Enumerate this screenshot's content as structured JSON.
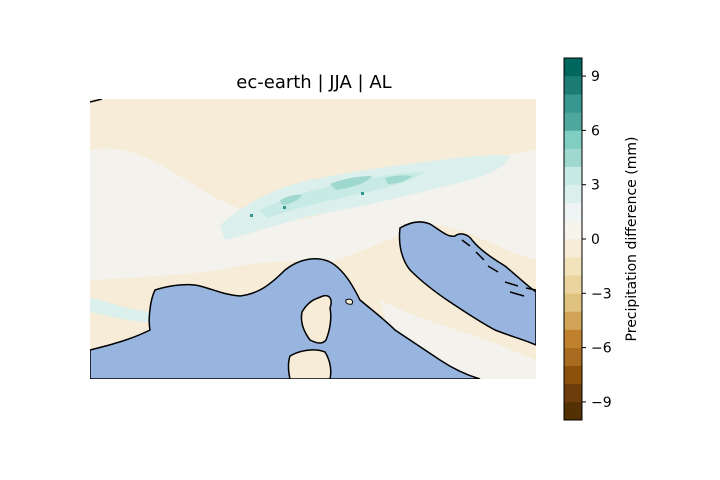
{
  "chart_data": {
    "type": "heatmap",
    "title": "ec-earth | JJA | AL",
    "map_region": "Northern Italy / Alps / Adriatic",
    "colorbar": {
      "label": "Precipitation difference (mm)",
      "range": [
        -10,
        10
      ],
      "levels": [
        -10,
        -9,
        -8,
        -7,
        -6,
        -5,
        -4,
        -3,
        -2,
        -1,
        0,
        1,
        2,
        3,
        4,
        5,
        6,
        7,
        8,
        9,
        10
      ],
      "colors": [
        "#543005",
        "#6d3e0b",
        "#8c510a",
        "#a96b1f",
        "#bf812d",
        "#d2a457",
        "#dfc27d",
        "#ead39c",
        "#f3e3bc",
        "#f6ecd7",
        "#f7f4ec",
        "#eef5f4",
        "#dbf0ec",
        "#c7eae5",
        "#9fd8ce",
        "#80cdc1",
        "#4ea89e",
        "#35978f",
        "#1b7c74",
        "#01665e",
        "#003c30"
      ],
      "ticks": [
        -9,
        -6,
        -3,
        0,
        3,
        6,
        9
      ],
      "tick_labels": [
        "−9",
        "−6",
        "−3",
        "0",
        "3",
        "6",
        "9"
      ]
    },
    "sea_color": "#98b5e0",
    "land_color": "#f6ecd7",
    "features": {
      "alps_wet_band": "values ~ +1 to +5 mm along Alpine ridge",
      "po_valley": "near 0 to slightly negative",
      "sea": "masked"
    }
  }
}
